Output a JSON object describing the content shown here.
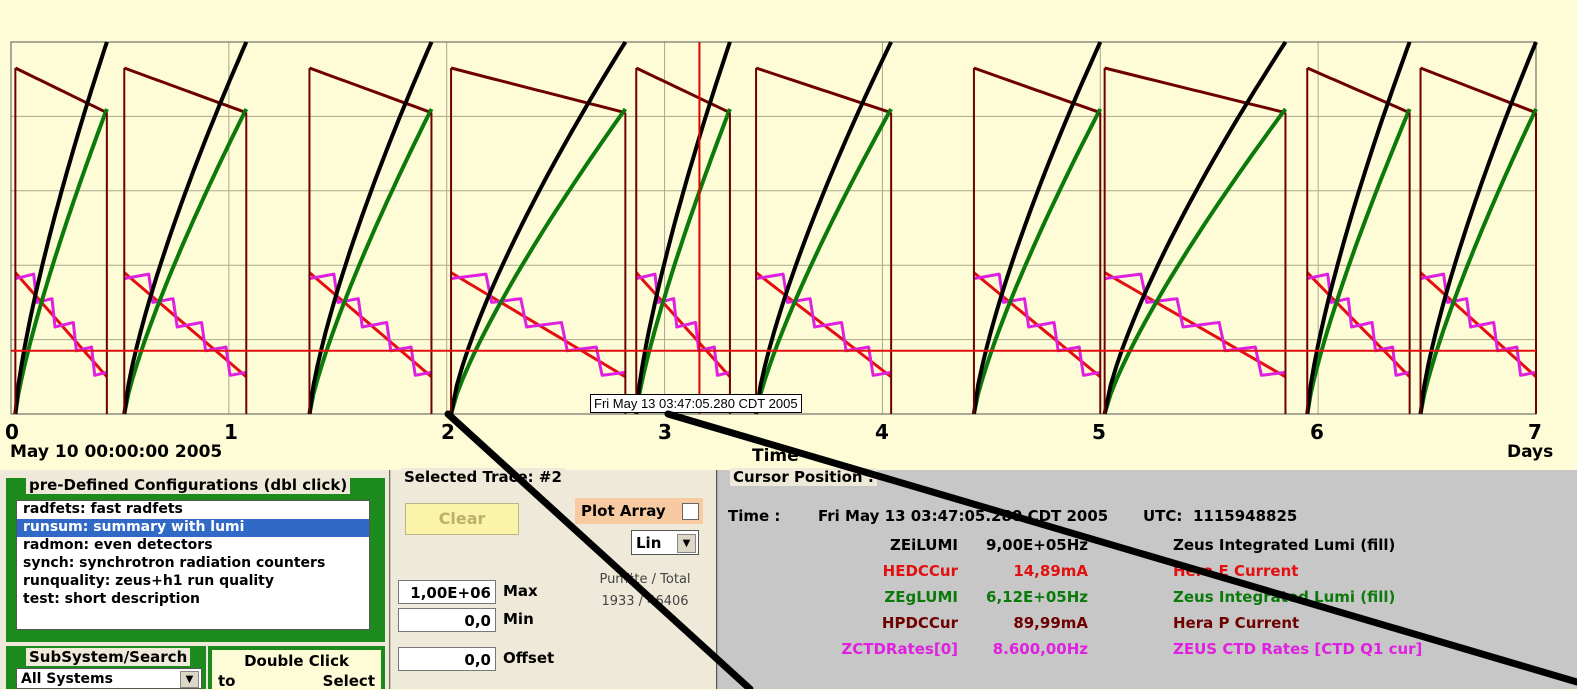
{
  "chart_data": {
    "type": "line",
    "xlabel": "Time",
    "x_unit": "Days",
    "x_start": "May 10 00:00:00 2005",
    "xlim": [
      0,
      7
    ],
    "x_ticks": [
      "0",
      "1",
      "2",
      "3",
      "4",
      "5",
      "6",
      "7"
    ],
    "grid": true,
    "cursor_x": 3.16,
    "hline_fraction": 0.17,
    "series": [
      {
        "name": "ZEiLUMI",
        "color": "#000000"
      },
      {
        "name": "HEDCCur",
        "color": "#e21010"
      },
      {
        "name": "ZEgLUMI",
        "color": "#0b7a0b"
      },
      {
        "name": "HPDCCur",
        "color": "#6e0000"
      },
      {
        "name": "ZCTDRates[0]",
        "color": "#e020e0"
      }
    ]
  },
  "plot": {
    "tick_labels": [
      "0",
      "1",
      "2",
      "3",
      "4",
      "5",
      "6",
      "7"
    ],
    "start_label": "May 10 00:00:00 2005",
    "xlabel": "Time",
    "unit_label": "Days",
    "cursor_tooltip": "Fri May 13 03:47:05.280 CDT 2005"
  },
  "configs": {
    "title": "pre-Defined Configurations (dbl click)",
    "items": [
      "radfets: fast radfets",
      "runsum: summary with lumi",
      "radmon: even detectors",
      "synch: synchrotron radiation counters",
      "runquality: zeus+h1 run quality",
      "test: short description"
    ],
    "selected_index": 1
  },
  "subsystem": {
    "title": "SubSystem/Search",
    "value": "All Systems"
  },
  "dblclick": {
    "label": "Double Click",
    "to": "to",
    "select": "Select"
  },
  "trace": {
    "title": "Selected Trace: #2",
    "clear": "Clear",
    "plot_array": "Plot Array",
    "scale": "Lin",
    "max_value": "1,00E+06",
    "max_label": "Max",
    "min_value": "0,0",
    "min_label": "Min",
    "offset_value": "0,0",
    "offset_label": "Offset",
    "count_label": "Pun#te / Total",
    "count_value": "1933 / 46406"
  },
  "cursor": {
    "title": "Cursor Position :",
    "time_label": "Time :",
    "time_value": "Fri May 13 03:47:05.280 CDT 2005",
    "utc_label": "UTC:",
    "utc_value": "1115948825",
    "rows": [
      {
        "name": "ZEiLUMI",
        "value": "9,00E+05Hz",
        "desc": "Zeus Integrated Lumi (fill)",
        "color": "#000000"
      },
      {
        "name": "HEDCCur",
        "value": "14,89mA",
        "desc": "Hera E Current",
        "color": "#e21010"
      },
      {
        "name": "ZEgLUMI",
        "value": "6,12E+05Hz",
        "desc": "Zeus Integrated Lumi (fill)",
        "color": "#0b7a0b"
      },
      {
        "name": "HPDCCur",
        "value": "89,99mA",
        "desc": "Hera P Current",
        "color": "#6e0000"
      },
      {
        "name": "ZCTDRates[0]",
        "value": "8.600,00Hz",
        "desc": "ZEUS CTD Rates [CTD Q1 cur]",
        "color": "#e020e0"
      }
    ]
  }
}
